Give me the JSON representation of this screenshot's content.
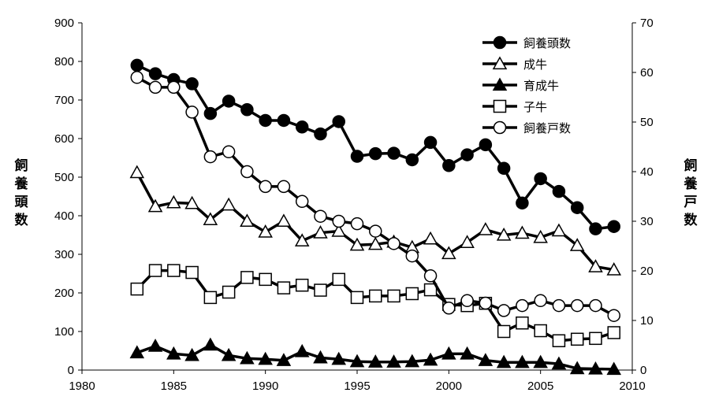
{
  "chart_data": {
    "type": "line",
    "y_left_label": "飼養頭数",
    "y_right_label": "飼養戸数",
    "xlim": [
      1980,
      2010
    ],
    "x_ticks": [
      1980,
      1985,
      1990,
      1995,
      2000,
      2005,
      2010
    ],
    "ylim_left": [
      0,
      900
    ],
    "y_left_ticks": [
      0,
      100,
      200,
      300,
      400,
      500,
      600,
      700,
      800,
      900
    ],
    "ylim_right": [
      0,
      70
    ],
    "y_right_ticks": [
      0,
      10,
      20,
      30,
      40,
      50,
      60,
      70
    ],
    "legend_position": "top-right",
    "grid": false,
    "x": [
      1983,
      1984,
      1985,
      1986,
      1987,
      1988,
      1989,
      1990,
      1991,
      1992,
      1993,
      1994,
      1995,
      1996,
      1997,
      1998,
      1999,
      2000,
      2001,
      2002,
      2003,
      2004,
      2005,
      2006,
      2007,
      2008,
      2009
    ],
    "series": [
      {
        "name": "飼養頭数",
        "axis": "left",
        "marker": "filled-circle",
        "values": [
          790,
          768,
          753,
          742,
          665,
          697,
          675,
          647,
          647,
          630,
          612,
          644,
          554,
          561,
          562,
          545,
          590,
          530,
          558,
          584,
          523,
          433,
          496,
          463,
          421,
          366,
          372
        ]
      },
      {
        "name": "成牛",
        "axis": "left",
        "marker": "open-triangle",
        "values": [
          512,
          424,
          434,
          432,
          390,
          428,
          386,
          358,
          386,
          335,
          356,
          360,
          324,
          326,
          332,
          318,
          340,
          302,
          331,
          364,
          350,
          355,
          344,
          361,
          323,
          268,
          260
        ]
      },
      {
        "name": "育成牛",
        "axis": "left",
        "marker": "filled-triangle",
        "values": [
          45,
          62,
          42,
          38,
          65,
          38,
          30,
          28,
          25,
          48,
          32,
          28,
          22,
          21,
          21,
          22,
          26,
          42,
          42,
          25,
          20,
          20,
          20,
          16,
          4,
          3,
          2
        ]
      },
      {
        "name": "子牛",
        "axis": "left",
        "marker": "open-square",
        "values": [
          210,
          258,
          258,
          253,
          188,
          202,
          240,
          235,
          213,
          220,
          207,
          235,
          188,
          192,
          192,
          198,
          208,
          170,
          167,
          173,
          100,
          122,
          102,
          76,
          80,
          82,
          97
        ]
      },
      {
        "name": "飼養戸数",
        "axis": "right",
        "marker": "open-circle",
        "values": [
          59,
          57,
          57,
          52,
          43,
          44,
          40,
          37,
          37,
          34,
          31,
          30,
          29.5,
          28,
          25.5,
          23,
          19,
          12.5,
          14,
          13.5,
          12,
          13,
          14,
          13,
          13,
          13,
          11
        ]
      }
    ]
  }
}
